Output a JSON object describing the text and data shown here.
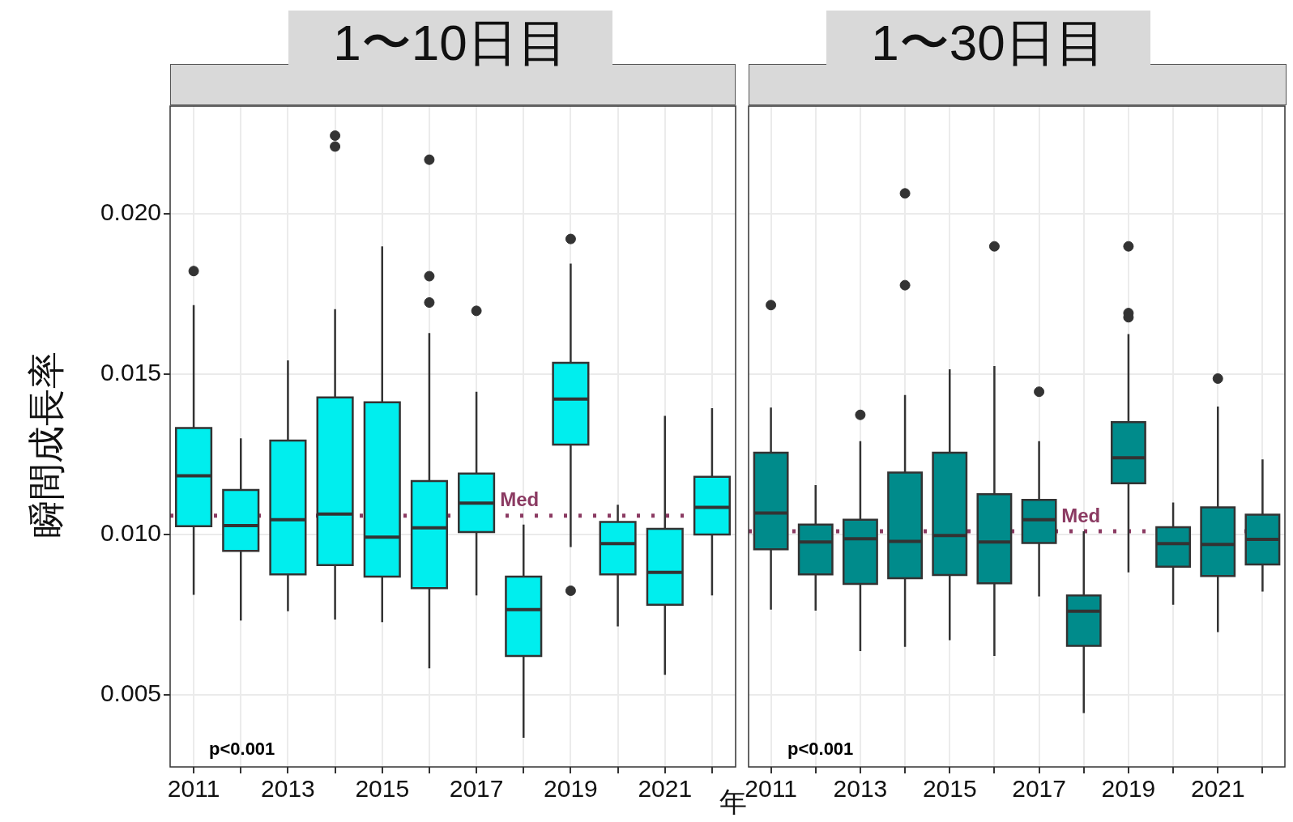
{
  "chart_data": [
    {
      "type": "box",
      "title": "1〜10日目",
      "ylabel": "瞬間成長率",
      "xlabel": "年",
      "color": "#00eeee",
      "grid": true,
      "categories": [
        "2011",
        null,
        "2013",
        null,
        "2015",
        null,
        "2017",
        null,
        "2019",
        null,
        "2021",
        null
      ],
      "boxes": [
        {
          "low": 0.00812,
          "q1": 0.01026,
          "median": 0.01183,
          "q3": 0.01332,
          "high": 0.01715,
          "outliers": [
            0.01821
          ]
        },
        {
          "low": 0.00732,
          "q1": 0.00949,
          "median": 0.01028,
          "q3": 0.01139,
          "high": 0.013
        },
        {
          "low": 0.00761,
          "q1": 0.00876,
          "median": 0.01046,
          "q3": 0.01293,
          "high": 0.01543
        },
        {
          "low": 0.00735,
          "q1": 0.00905,
          "median": 0.01064,
          "q3": 0.01427,
          "high": 0.01702,
          "outliers": [
            0.02243,
            0.02209
          ]
        },
        {
          "low": 0.00727,
          "q1": 0.00869,
          "median": 0.00992,
          "q3": 0.01412,
          "high": 0.01898
        },
        {
          "low": 0.00583,
          "q1": 0.00833,
          "median": 0.01021,
          "q3": 0.01167,
          "high": 0.01628,
          "outliers": [
            0.02168,
            0.01805,
            0.01723
          ]
        },
        {
          "low": 0.0081,
          "q1": 0.01008,
          "median": 0.01098,
          "q3": 0.0119,
          "high": 0.01445,
          "outliers": [
            0.01697
          ]
        },
        {
          "low": 0.00367,
          "q1": 0.00622,
          "median": 0.00766,
          "q3": 0.00869,
          "high": 0.01031
        },
        {
          "low": 0.00961,
          "q1": 0.0128,
          "median": 0.01422,
          "q3": 0.01535,
          "high": 0.01844,
          "outliers": [
            0.01921,
            0.00825
          ]
        },
        {
          "low": 0.00714,
          "q1": 0.00876,
          "median": 0.00972,
          "q3": 0.01039,
          "high": 0.01093
        },
        {
          "low": 0.00563,
          "q1": 0.00781,
          "median": 0.00882,
          "q3": 0.01018,
          "high": 0.0137
        },
        {
          "low": 0.0081,
          "q1": 0.01,
          "median": 0.01085,
          "q3": 0.0118,
          "high": 0.01394
        }
      ],
      "ylim": [
        0.00276,
        0.02335
      ],
      "yticks": [
        {
          "value": 0.005,
          "label": "0.005"
        },
        {
          "value": 0.01,
          "label": "0.010"
        },
        {
          "value": 0.015,
          "label": "0.015"
        },
        {
          "value": 0.02,
          "label": "0.020"
        }
      ],
      "ref_lines": [
        {
          "axis": "y",
          "value": 0.01059,
          "label": "Med",
          "color": "#8b3a62",
          "line_style": "dotted"
        }
      ],
      "annotations": [
        "p<0.001"
      ]
    },
    {
      "type": "box",
      "title": "1〜30日目",
      "color": "#008b8b",
      "grid": true,
      "tick_labels": "x",
      "categories": [
        "2011",
        null,
        "2013",
        null,
        "2015",
        null,
        "2017",
        null,
        "2019",
        null,
        "2021",
        null
      ],
      "boxes": [
        {
          "low": 0.00766,
          "q1": 0.00954,
          "median": 0.01067,
          "q3": 0.01255,
          "high": 0.01396,
          "outliers": [
            0.01715
          ]
        },
        {
          "low": 0.00763,
          "q1": 0.00876,
          "median": 0.00977,
          "q3": 0.01031,
          "high": 0.01154
        },
        {
          "low": 0.00637,
          "q1": 0.00846,
          "median": 0.00987,
          "q3": 0.01046,
          "high": 0.01291,
          "outliers": [
            0.01373
          ]
        },
        {
          "low": 0.0065,
          "q1": 0.00864,
          "median": 0.00979,
          "q3": 0.01193,
          "high": 0.01435,
          "outliers": [
            0.02063,
            0.01777
          ]
        },
        {
          "low": 0.00671,
          "q1": 0.00874,
          "median": 0.00997,
          "q3": 0.01255,
          "high": 0.01515
        },
        {
          "low": 0.00622,
          "q1": 0.00848,
          "median": 0.00977,
          "q3": 0.01126,
          "high": 0.01525,
          "outliers": [
            0.01898
          ]
        },
        {
          "low": 0.00807,
          "q1": 0.00974,
          "median": 0.01046,
          "q3": 0.01108,
          "high": 0.01291,
          "outliers": [
            0.01445
          ]
        },
        {
          "low": 0.00444,
          "q1": 0.00653,
          "median": 0.00761,
          "q3": 0.0081,
          "high": 0.0101
        },
        {
          "low": 0.00882,
          "q1": 0.0116,
          "median": 0.01239,
          "q3": 0.0135,
          "high": 0.01625,
          "outliers": [
            0.01898,
            0.0169,
            0.01677
          ]
        },
        {
          "low": 0.00781,
          "q1": 0.009,
          "median": 0.00972,
          "q3": 0.01023,
          "high": 0.011
        },
        {
          "low": 0.00696,
          "q1": 0.00871,
          "median": 0.00969,
          "q3": 0.01085,
          "high": 0.01399,
          "outliers": [
            0.01486
          ]
        },
        {
          "low": 0.00822,
          "q1": 0.00907,
          "median": 0.00985,
          "q3": 0.01062,
          "high": 0.01234
        }
      ],
      "ylim": [
        0.00276,
        0.02335
      ],
      "yticks": [
        0.005,
        0.01,
        0.015,
        0.02
      ],
      "ref_lines": [
        {
          "axis": "y",
          "value": 0.0101,
          "label": "Med",
          "color": "#8b3a62",
          "line_style": "dotted"
        }
      ],
      "annotations": [
        "p<0.001"
      ]
    }
  ]
}
